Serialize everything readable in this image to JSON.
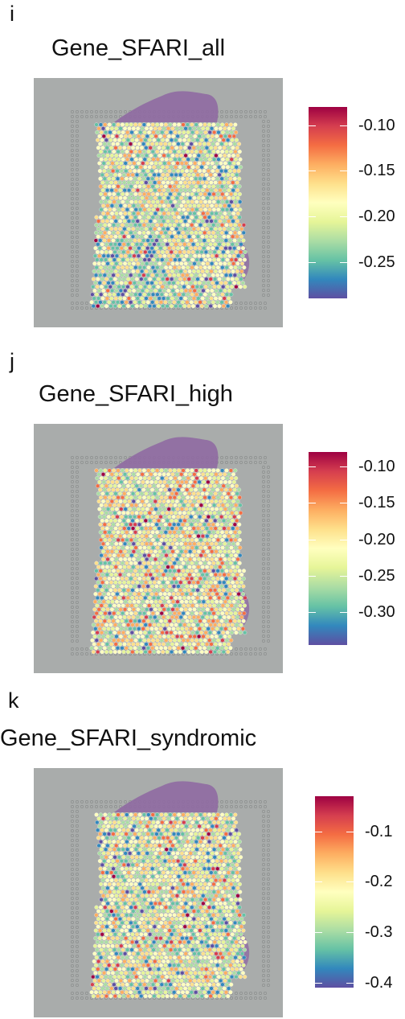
{
  "chart_data": [
    {
      "type": "heatmap",
      "panel_label": "i",
      "title": "Gene_SFARI_all",
      "colorbar": {
        "ticks": [
          "-0.10",
          "-0.15",
          "-0.20",
          "-0.25"
        ],
        "tick_values": [
          -0.1,
          -0.15,
          -0.2,
          -0.25
        ],
        "range": [
          -0.29,
          -0.08
        ],
        "palette": "Spectral"
      }
    },
    {
      "type": "heatmap",
      "panel_label": "j",
      "title": "Gene_SFARI_high",
      "colorbar": {
        "ticks": [
          "-0.10",
          "-0.15",
          "-0.20",
          "-0.25",
          "-0.30"
        ],
        "tick_values": [
          -0.1,
          -0.15,
          -0.2,
          -0.25,
          -0.3
        ],
        "range": [
          -0.345,
          -0.08
        ],
        "palette": "Spectral"
      }
    },
    {
      "type": "heatmap",
      "panel_label": "k",
      "title": "Gene_SFARI_syndromic",
      "colorbar": {
        "ticks": [
          "-0.1",
          "-0.2",
          "-0.3",
          "-0.4"
        ],
        "tick_values": [
          -0.1,
          -0.2,
          -0.3,
          -0.4
        ],
        "range": [
          -0.41,
          -0.03
        ],
        "palette": "Spectral"
      }
    }
  ],
  "colors": {
    "tissue_background": "#a9acab",
    "stain": "#8f6aa2",
    "page": "#ffffff"
  }
}
